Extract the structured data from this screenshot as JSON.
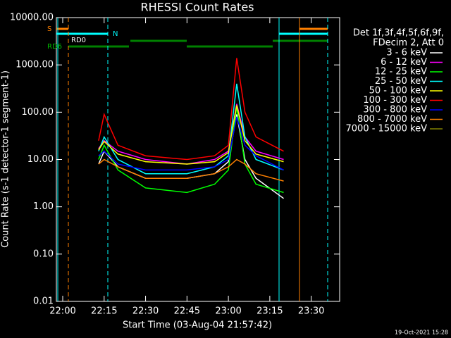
{
  "chart_data": {
    "type": "line",
    "title": "RHESSI Count Rates",
    "x_label": "Start Time (03-Aug-04 21:57:42)",
    "y_label": "Count Rate (s-1 detector-1 segment-1)",
    "legend_header": [
      "Det 1f,3f,4f,5f,6f,9f,",
      "FDecim 2, Att 0"
    ],
    "footer": "19-Oct-2021 15:28",
    "annotations": [
      "S",
      "N",
      "RD0",
      "RD6"
    ],
    "log_y": true,
    "xlim": [
      1317.7,
      1420.3
    ],
    "xticks": [
      {
        "value": 1320,
        "label": "22:00"
      },
      {
        "value": 1335,
        "label": "22:15"
      },
      {
        "value": 1350,
        "label": "22:30"
      },
      {
        "value": 1365,
        "label": "22:45"
      },
      {
        "value": 1380,
        "label": "23:00"
      },
      {
        "value": 1395,
        "label": "23:15"
      },
      {
        "value": 1410,
        "label": "23:30"
      }
    ],
    "ylim": [
      0.01,
      10000
    ],
    "yticks": [
      {
        "value": 10000,
        "label": "10000.00"
      },
      {
        "value": 1000,
        "label": "1000.00"
      },
      {
        "value": 100,
        "label": "100.00"
      },
      {
        "value": 10,
        "label": "10.00"
      },
      {
        "value": 1,
        "label": "1.00"
      },
      {
        "value": 0.1,
        "label": "0.10"
      },
      {
        "value": 0.01,
        "label": "0.01"
      }
    ],
    "x": [
      1333,
      1335,
      1340,
      1350,
      1365,
      1375,
      1380,
      1383,
      1386,
      1390,
      1400
    ],
    "series": [
      {
        "name": "3 - 6 keV",
        "color": "#ffffff",
        "values": [
          8,
          15,
          7,
          4,
          4,
          5,
          9,
          90,
          10,
          4,
          1.5
        ]
      },
      {
        "name": "6 - 12 keV",
        "color": "#ff00ff",
        "values": [
          17,
          25,
          15,
          10,
          8,
          10,
          15,
          150,
          30,
          15,
          10
        ]
      },
      {
        "name": "12 - 25 keV",
        "color": "#00ff00",
        "values": [
          10,
          20,
          6,
          2.5,
          2,
          3,
          6,
          130,
          8,
          3,
          2
        ]
      },
      {
        "name": "25 - 50 keV",
        "color": "#00ffff",
        "values": [
          15,
          30,
          10,
          5,
          5,
          7,
          12,
          400,
          30,
          10,
          6
        ]
      },
      {
        "name": "50 - 100 keV",
        "color": "#ffff00",
        "values": [
          16,
          24,
          13,
          9,
          8,
          9,
          14,
          140,
          25,
          13,
          9
        ]
      },
      {
        "name": "100 - 300 keV",
        "color": "#ff0000",
        "values": [
          25,
          90,
          20,
          12,
          10,
          12,
          20,
          1400,
          100,
          30,
          15
        ]
      },
      {
        "name": "300 - 800 keV",
        "color": "#0000ff",
        "values": [
          12,
          15,
          8,
          6,
          6,
          7,
          10,
          80,
          20,
          12,
          6
        ]
      },
      {
        "name": "800 - 7000 keV",
        "color": "#ff8000",
        "values": [
          8,
          10,
          7,
          4,
          4,
          5,
          7,
          10,
          8,
          5,
          3.5
        ]
      },
      {
        "name": "7000 - 15000 keV",
        "color": "#808000",
        "values": [
          null,
          null,
          null,
          null,
          null,
          null,
          null,
          null,
          null,
          null,
          null
        ]
      }
    ]
  }
}
